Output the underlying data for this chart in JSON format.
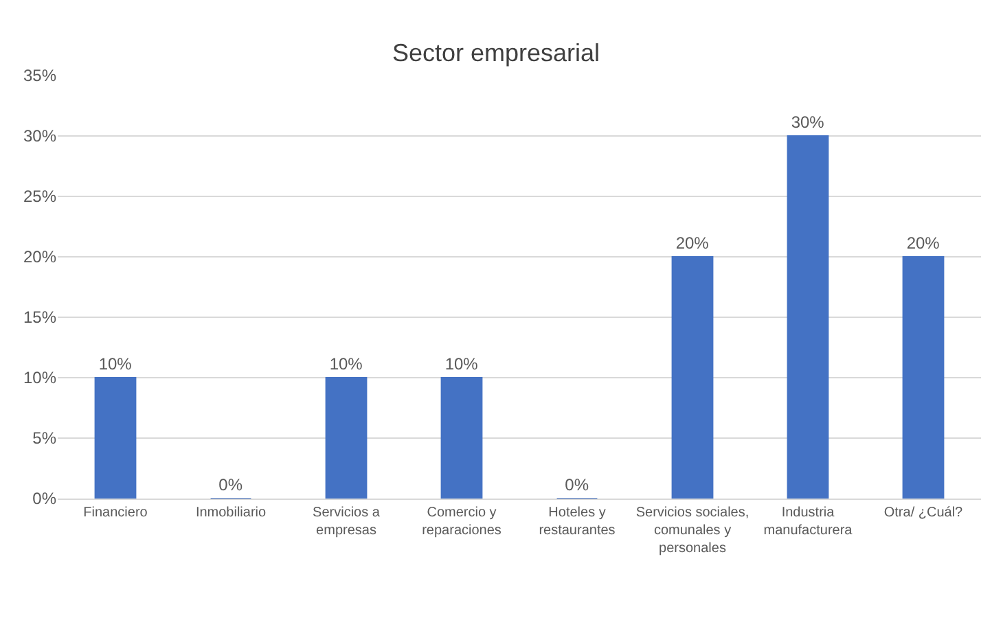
{
  "chart_data": {
    "type": "bar",
    "title": "Sector empresarial",
    "categories": [
      "Financiero",
      "Inmobiliario",
      "Servicios a empresas",
      "Comercio y reparaciones",
      "Hoteles y restaurantes",
      "Servicios sociales, comunales y personales",
      "Industria manufacturera",
      "Otra/ ¿Cuál?"
    ],
    "values": [
      10,
      0,
      10,
      10,
      0,
      20,
      30,
      20
    ],
    "value_labels": [
      "10%",
      "0%",
      "10%",
      "10%",
      "0%",
      "20%",
      "30%",
      "20%"
    ],
    "color": "#4472c4",
    "ylim": [
      0,
      35
    ],
    "yticks": [
      {
        "value": 0,
        "label": "0%"
      },
      {
        "value": 5,
        "label": "5%"
      },
      {
        "value": 10,
        "label": "10%"
      },
      {
        "value": 15,
        "label": "15%"
      },
      {
        "value": 20,
        "label": "20%"
      },
      {
        "value": 25,
        "label": "25%"
      },
      {
        "value": 30,
        "label": "30%"
      },
      {
        "value": 35,
        "label": "35%"
      }
    ],
    "grid": "y"
  }
}
